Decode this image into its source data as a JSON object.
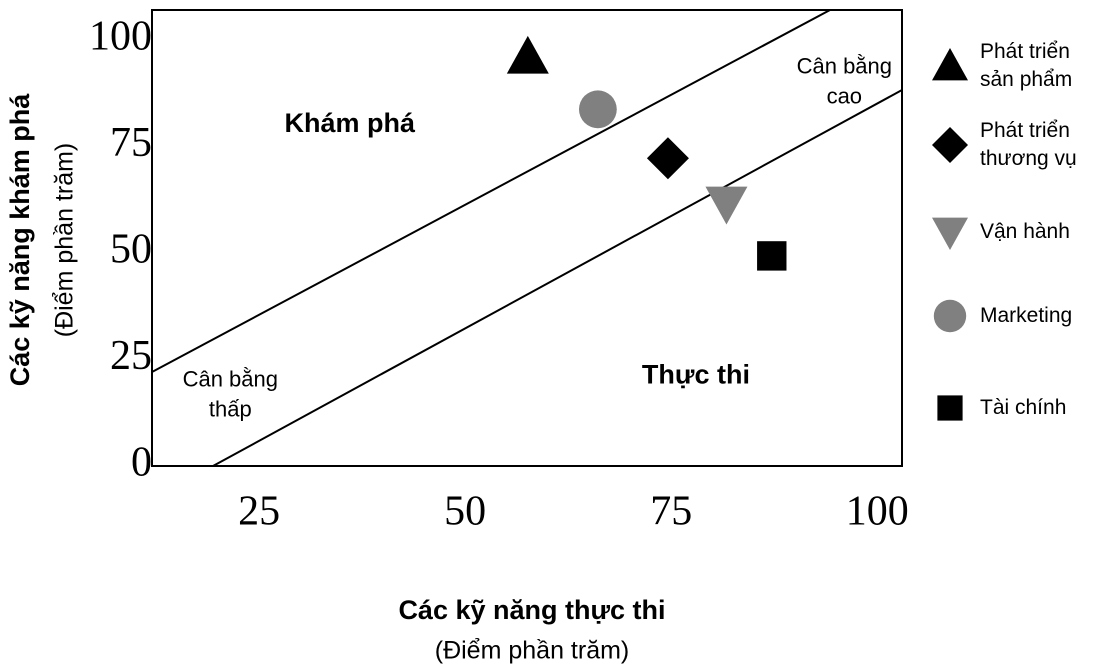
{
  "chart_data": {
    "type": "scatter",
    "x_label": "Các kỹ năng thực thi",
    "x_sublabel": "(Điểm phần trăm)",
    "y_label": "Các kỹ năng khám phá",
    "y_sublabel": "(Điểm phần trăm)",
    "xlim": [
      12,
      103
    ],
    "ylim": [
      0,
      107
    ],
    "xticks": [
      25,
      50,
      75,
      100
    ],
    "yticks": [
      0,
      25,
      50,
      75,
      100
    ],
    "annotations": [
      {
        "lines": [
          "Khám phá"
        ],
        "x": 36,
        "y": 80,
        "bold": true
      },
      {
        "lines": [
          "Thực thi"
        ],
        "x": 78,
        "y": 21,
        "bold": true
      },
      {
        "lines": [
          "Cân bằng",
          "cao"
        ],
        "x": 96,
        "y": 90,
        "bold": false
      },
      {
        "lines": [
          "Cân bằng",
          "thấp"
        ],
        "x": 21.5,
        "y": 16.5,
        "bold": false
      }
    ],
    "series": [
      {
        "name": "Phát triển sản phẩm",
        "marker": "triangle",
        "color": "#000000",
        "x": [
          57.6
        ],
        "y": [
          96
        ]
      },
      {
        "name": "Phát triển thương vụ",
        "marker": "diamond",
        "color": "#000000",
        "x": [
          74.6
        ],
        "y": [
          72.2
        ]
      },
      {
        "name": "Vận hành",
        "marker": "triangle-down",
        "color": "#808080",
        "x": [
          81.7
        ],
        "y": [
          61.6
        ]
      },
      {
        "name": "Marketing",
        "marker": "circle",
        "color": "#808080",
        "x": [
          66.1
        ],
        "y": [
          83.7
        ]
      },
      {
        "name": "Tài chính",
        "marker": "square",
        "color": "#000000",
        "x": [
          87.2
        ],
        "y": [
          49.3
        ]
      }
    ]
  }
}
